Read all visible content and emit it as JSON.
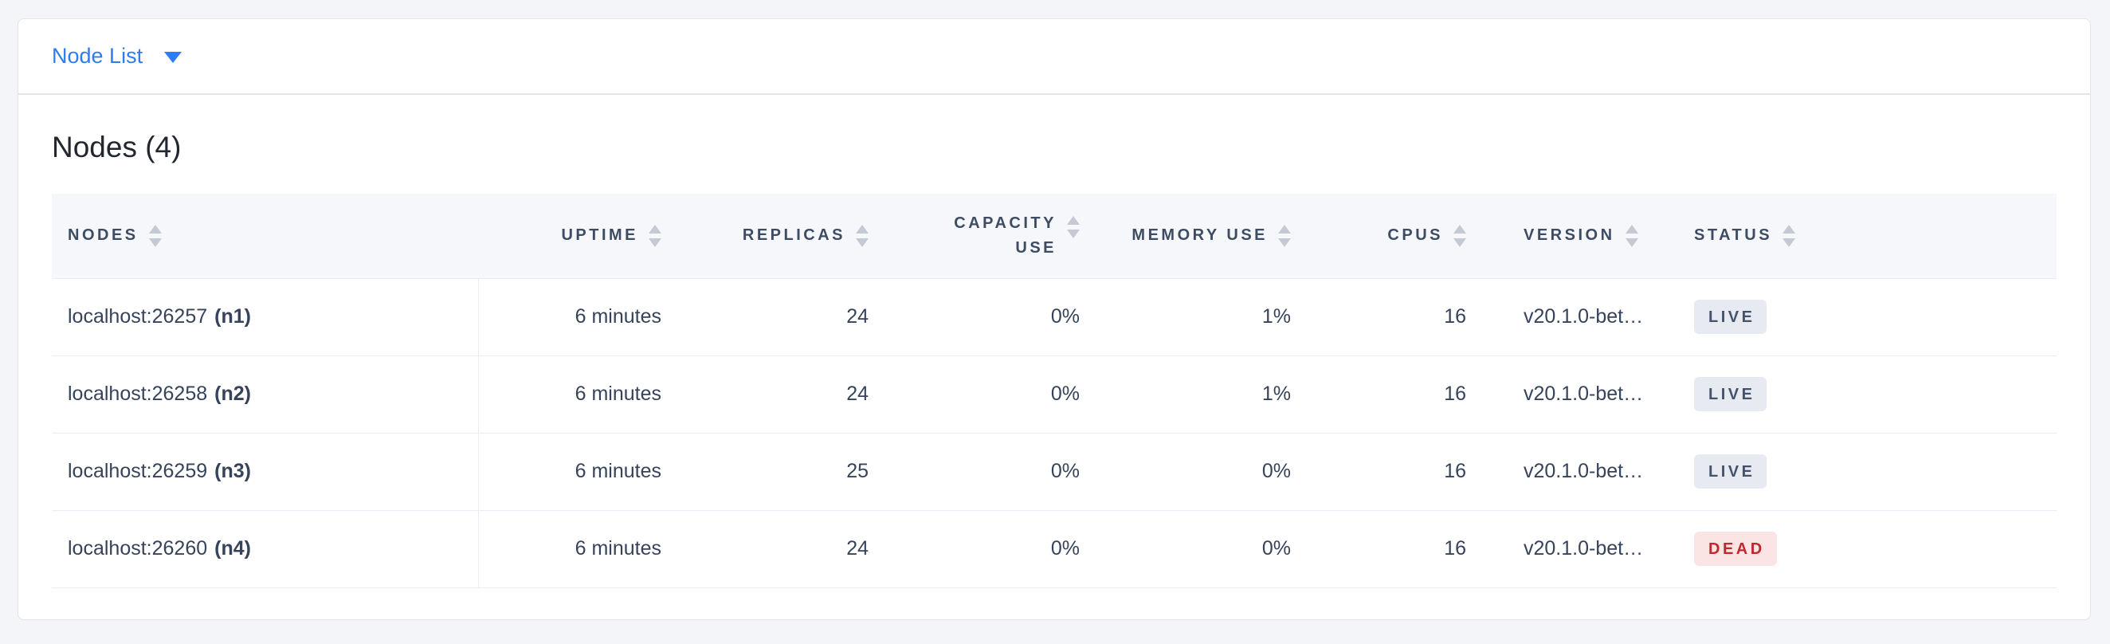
{
  "toolbar": {
    "dropdown_label": "Node List"
  },
  "content": {
    "title": "Nodes (4)"
  },
  "table": {
    "columns": [
      {
        "key": "nodes",
        "label": "NODES",
        "align": "left",
        "sortable": true
      },
      {
        "key": "uptime",
        "label": "UPTIME",
        "align": "right",
        "sortable": true
      },
      {
        "key": "replicas",
        "label": "REPLICAS",
        "align": "right",
        "sortable": true
      },
      {
        "key": "capacity",
        "label": "CAPACITY USE",
        "align": "right",
        "sortable": true
      },
      {
        "key": "memory",
        "label": "MEMORY USE",
        "align": "right",
        "sortable": true
      },
      {
        "key": "cpus",
        "label": "CPUS",
        "align": "right",
        "sortable": true
      },
      {
        "key": "version",
        "label": "VERSION",
        "align": "left",
        "sortable": true
      },
      {
        "key": "status",
        "label": "STATUS",
        "align": "left",
        "sortable": true
      }
    ],
    "rows": [
      {
        "address": "localhost:26257",
        "name": "(n1)",
        "uptime": "6 minutes",
        "replicas": "24",
        "capacity": "0%",
        "memory": "1%",
        "cpus": "16",
        "version": "v20.1.0-bet…",
        "status": "LIVE"
      },
      {
        "address": "localhost:26258",
        "name": "(n2)",
        "uptime": "6 minutes",
        "replicas": "24",
        "capacity": "0%",
        "memory": "1%",
        "cpus": "16",
        "version": "v20.1.0-bet…",
        "status": "LIVE"
      },
      {
        "address": "localhost:26259",
        "name": "(n3)",
        "uptime": "6 minutes",
        "replicas": "25",
        "capacity": "0%",
        "memory": "0%",
        "cpus": "16",
        "version": "v20.1.0-bet…",
        "status": "LIVE"
      },
      {
        "address": "localhost:26260",
        "name": "(n4)",
        "uptime": "6 minutes",
        "replicas": "24",
        "capacity": "0%",
        "memory": "0%",
        "cpus": "16",
        "version": "v20.1.0-bet…",
        "status": "DEAD"
      }
    ]
  },
  "icons": {
    "dropdown_caret": "caret-down-icon",
    "column_sort": "sort-arrows-icon"
  },
  "colors": {
    "page_background": "#f4f5f9",
    "panel_background": "#ffffff",
    "accent_blue": "#2d7cf0",
    "header_text": "#3e4c63",
    "cell_text": "#36435a",
    "table_header_background": "#f5f7fa",
    "row_border": "#e9ecf2",
    "live_badge_background": "#e7eaf1",
    "live_badge_text": "#45526b",
    "dead_badge_background": "#fbe4e4",
    "dead_badge_text": "#c1282e"
  }
}
